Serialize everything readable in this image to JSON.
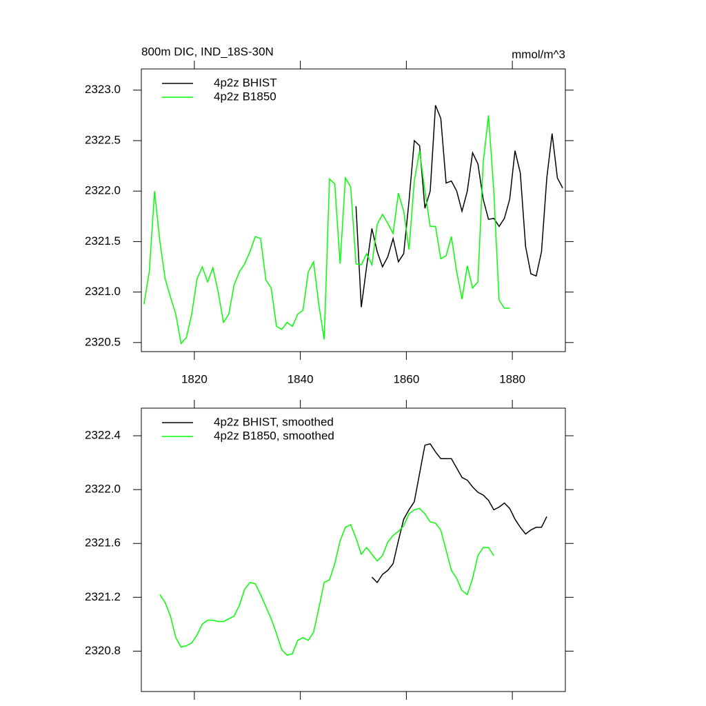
{
  "chart_data": [
    {
      "type": "line",
      "title": "800m DIC, IND_18S-30N",
      "units": "mmol/m^3",
      "xlim": [
        1810,
        1890
      ],
      "xticks": [
        1820,
        1840,
        1860,
        1880
      ],
      "ylim": [
        2320.41,
        2323.21
      ],
      "yticks": [
        {
          "value": 2320.5,
          "label": "2320.5"
        },
        {
          "value": 2321,
          "label": "2321.0"
        },
        2321.5,
        {
          "value": 2322,
          "label": "2322.0"
        },
        2322.5,
        {
          "value": 2323,
          "label": "2323.0"
        }
      ],
      "legend": "upper left",
      "series": [
        {
          "name": "4p2z BHIST",
          "color": "#000000",
          "x": [
            1850.5,
            1851.5,
            1852.5,
            1853.5,
            1854.5,
            1855.5,
            1856.5,
            1857.5,
            1858.5,
            1859.5,
            1860.5,
            1861.5,
            1862.5,
            1863.5,
            1864.5,
            1865.5,
            1866.5,
            1867.5,
            1868.5,
            1869.5,
            1870.5,
            1871.5,
            1872.5,
            1873.5,
            1874.5,
            1875.5,
            1876.5,
            1877.5,
            1878.5,
            1879.5,
            1880.5,
            1881.5,
            1882.5,
            1883.5,
            1884.5,
            1885.5,
            1886.5,
            1887.5,
            1888.5,
            1889.5
          ],
          "values": [
            2321.85,
            2320.85,
            2321.25,
            2321.63,
            2321.4,
            2321.25,
            2321.35,
            2321.53,
            2321.3,
            2321.38,
            2321.9,
            2322.5,
            2322.45,
            2321.83,
            2322.0,
            2322.85,
            2322.72,
            2322.08,
            2322.1,
            2322.0,
            2321.8,
            2322.0,
            2322.38,
            2322.27,
            2321.92,
            2321.72,
            2321.73,
            2321.65,
            2321.73,
            2321.92,
            2322.4,
            2322.18,
            2321.45,
            2321.18,
            2321.16,
            2321.4,
            2322.13,
            2322.57,
            2322.13,
            2322.03
          ]
        },
        {
          "name": "4p2z B1850",
          "color": "#00ff00",
          "x": [
            1810.5,
            1811.5,
            1812.5,
            1813.5,
            1814.5,
            1815.5,
            1816.5,
            1817.5,
            1818.5,
            1819.5,
            1820.5,
            1821.5,
            1822.5,
            1823.5,
            1824.5,
            1825.5,
            1826.5,
            1827.5,
            1828.5,
            1829.5,
            1830.5,
            1831.5,
            1832.5,
            1833.5,
            1834.5,
            1835.5,
            1836.5,
            1837.5,
            1838.5,
            1839.5,
            1840.5,
            1841.5,
            1842.5,
            1843.5,
            1844.5,
            1845.5,
            1846.5,
            1847.5,
            1848.5,
            1849.5,
            1850.5,
            1851.5,
            1852.5,
            1853.5,
            1854.5,
            1855.5,
            1856.5,
            1857.5,
            1858.5,
            1859.5,
            1860.5,
            1861.5,
            1862.5,
            1863.5,
            1864.5,
            1865.5,
            1866.5,
            1867.5,
            1868.5,
            1869.5,
            1870.5,
            1871.5,
            1872.5,
            1873.5,
            1874.5,
            1875.5,
            1876.5,
            1877.5,
            1878.5,
            1879.5
          ],
          "values": [
            2320.88,
            2321.2,
            2322.0,
            2321.5,
            2321.13,
            2320.95,
            2320.78,
            2320.49,
            2320.55,
            2320.78,
            2321.13,
            2321.25,
            2321.1,
            2321.24,
            2321.0,
            2320.7,
            2320.78,
            2321.07,
            2321.2,
            2321.28,
            2321.4,
            2321.55,
            2321.53,
            2321.12,
            2321.04,
            2320.66,
            2320.63,
            2320.7,
            2320.66,
            2320.78,
            2320.82,
            2321.2,
            2321.3,
            2320.87,
            2320.53,
            2322.12,
            2322.07,
            2321.28,
            2322.13,
            2322.04,
            2321.28,
            2321.27,
            2321.38,
            2321.27,
            2321.67,
            2321.77,
            2321.68,
            2321.58,
            2321.98,
            2321.8,
            2321.42,
            2322.1,
            2322.4,
            2322.0,
            2321.65,
            2321.65,
            2321.33,
            2321.36,
            2321.55,
            2321.2,
            2320.93,
            2321.26,
            2321.04,
            2321.1,
            2322.28,
            2322.75,
            2322.0,
            2320.92,
            2320.84,
            2320.84
          ]
        }
      ]
    },
    {
      "type": "line",
      "xlim": [
        1810,
        1890
      ],
      "xticks": [
        1820,
        1840,
        1860,
        1880
      ],
      "ylim": [
        2320.5,
        2322.605
      ],
      "yticks": [
        2320.8,
        2321.2,
        2321.6,
        {
          "value": 2322,
          "label": "2322.0"
        },
        2322.4
      ],
      "legend": "upper left",
      "series": [
        {
          "name": "4p2z BHIST, smoothed",
          "color": "#000000",
          "x": [
            1853.5,
            1854.5,
            1855.5,
            1856.5,
            1857.5,
            1858.5,
            1859.5,
            1860.5,
            1861.5,
            1862.5,
            1863.5,
            1864.5,
            1865.5,
            1866.5,
            1867.5,
            1868.5,
            1869.5,
            1870.5,
            1871.5,
            1872.5,
            1873.5,
            1874.5,
            1875.5,
            1876.5,
            1877.5,
            1878.5,
            1879.5,
            1880.5,
            1881.5,
            1882.5,
            1883.5,
            1884.5,
            1885.5,
            1886.5
          ],
          "values": [
            2321.35,
            2321.31,
            2321.37,
            2321.4,
            2321.45,
            2321.62,
            2321.78,
            2321.85,
            2321.91,
            2322.12,
            2322.33,
            2322.34,
            2322.28,
            2322.23,
            2322.23,
            2322.23,
            2322.16,
            2322.09,
            2322.07,
            2322.02,
            2321.98,
            2321.96,
            2321.92,
            2321.85,
            2321.87,
            2321.9,
            2321.86,
            2321.78,
            2321.72,
            2321.67,
            2321.7,
            2321.72,
            2321.72,
            2321.8
          ]
        },
        {
          "name": "4p2z B1850, smoothed",
          "color": "#00ff00",
          "x": [
            1813.5,
            1814.5,
            1815.5,
            1816.5,
            1817.5,
            1818.5,
            1819.5,
            1820.5,
            1821.5,
            1822.5,
            1823.5,
            1824.5,
            1825.5,
            1826.5,
            1827.5,
            1828.5,
            1829.5,
            1830.5,
            1831.5,
            1832.5,
            1833.5,
            1834.5,
            1835.5,
            1836.5,
            1837.5,
            1838.5,
            1839.5,
            1840.5,
            1841.5,
            1842.5,
            1843.5,
            1844.5,
            1845.5,
            1846.5,
            1847.5,
            1848.5,
            1849.5,
            1850.5,
            1851.5,
            1852.5,
            1853.5,
            1854.5,
            1855.5,
            1856.5,
            1857.5,
            1858.5,
            1859.5,
            1860.5,
            1861.5,
            1862.5,
            1863.5,
            1864.5,
            1865.5,
            1866.5,
            1867.5,
            1868.5,
            1869.5,
            1870.5,
            1871.5,
            1872.5,
            1873.5,
            1874.5,
            1875.5,
            1876.5
          ],
          "values": [
            2321.22,
            2321.16,
            2321.06,
            2320.9,
            2320.83,
            2320.84,
            2320.86,
            2320.92,
            2321.0,
            2321.03,
            2321.03,
            2321.02,
            2321.02,
            2321.04,
            2321.06,
            2321.14,
            2321.26,
            2321.31,
            2321.3,
            2321.22,
            2321.13,
            2321.04,
            2320.93,
            2320.81,
            2320.77,
            2320.78,
            2320.88,
            2320.9,
            2320.88,
            2320.94,
            2321.12,
            2321.31,
            2321.33,
            2321.45,
            2321.62,
            2321.72,
            2321.74,
            2321.64,
            2321.52,
            2321.57,
            2321.52,
            2321.47,
            2321.51,
            2321.61,
            2321.66,
            2321.69,
            2321.73,
            2321.82,
            2321.85,
            2321.86,
            2321.82,
            2321.76,
            2321.75,
            2321.7,
            2321.55,
            2321.4,
            2321.34,
            2321.25,
            2321.22,
            2321.34,
            2321.51,
            2321.57,
            2321.57,
            2321.51
          ]
        }
      ]
    }
  ]
}
